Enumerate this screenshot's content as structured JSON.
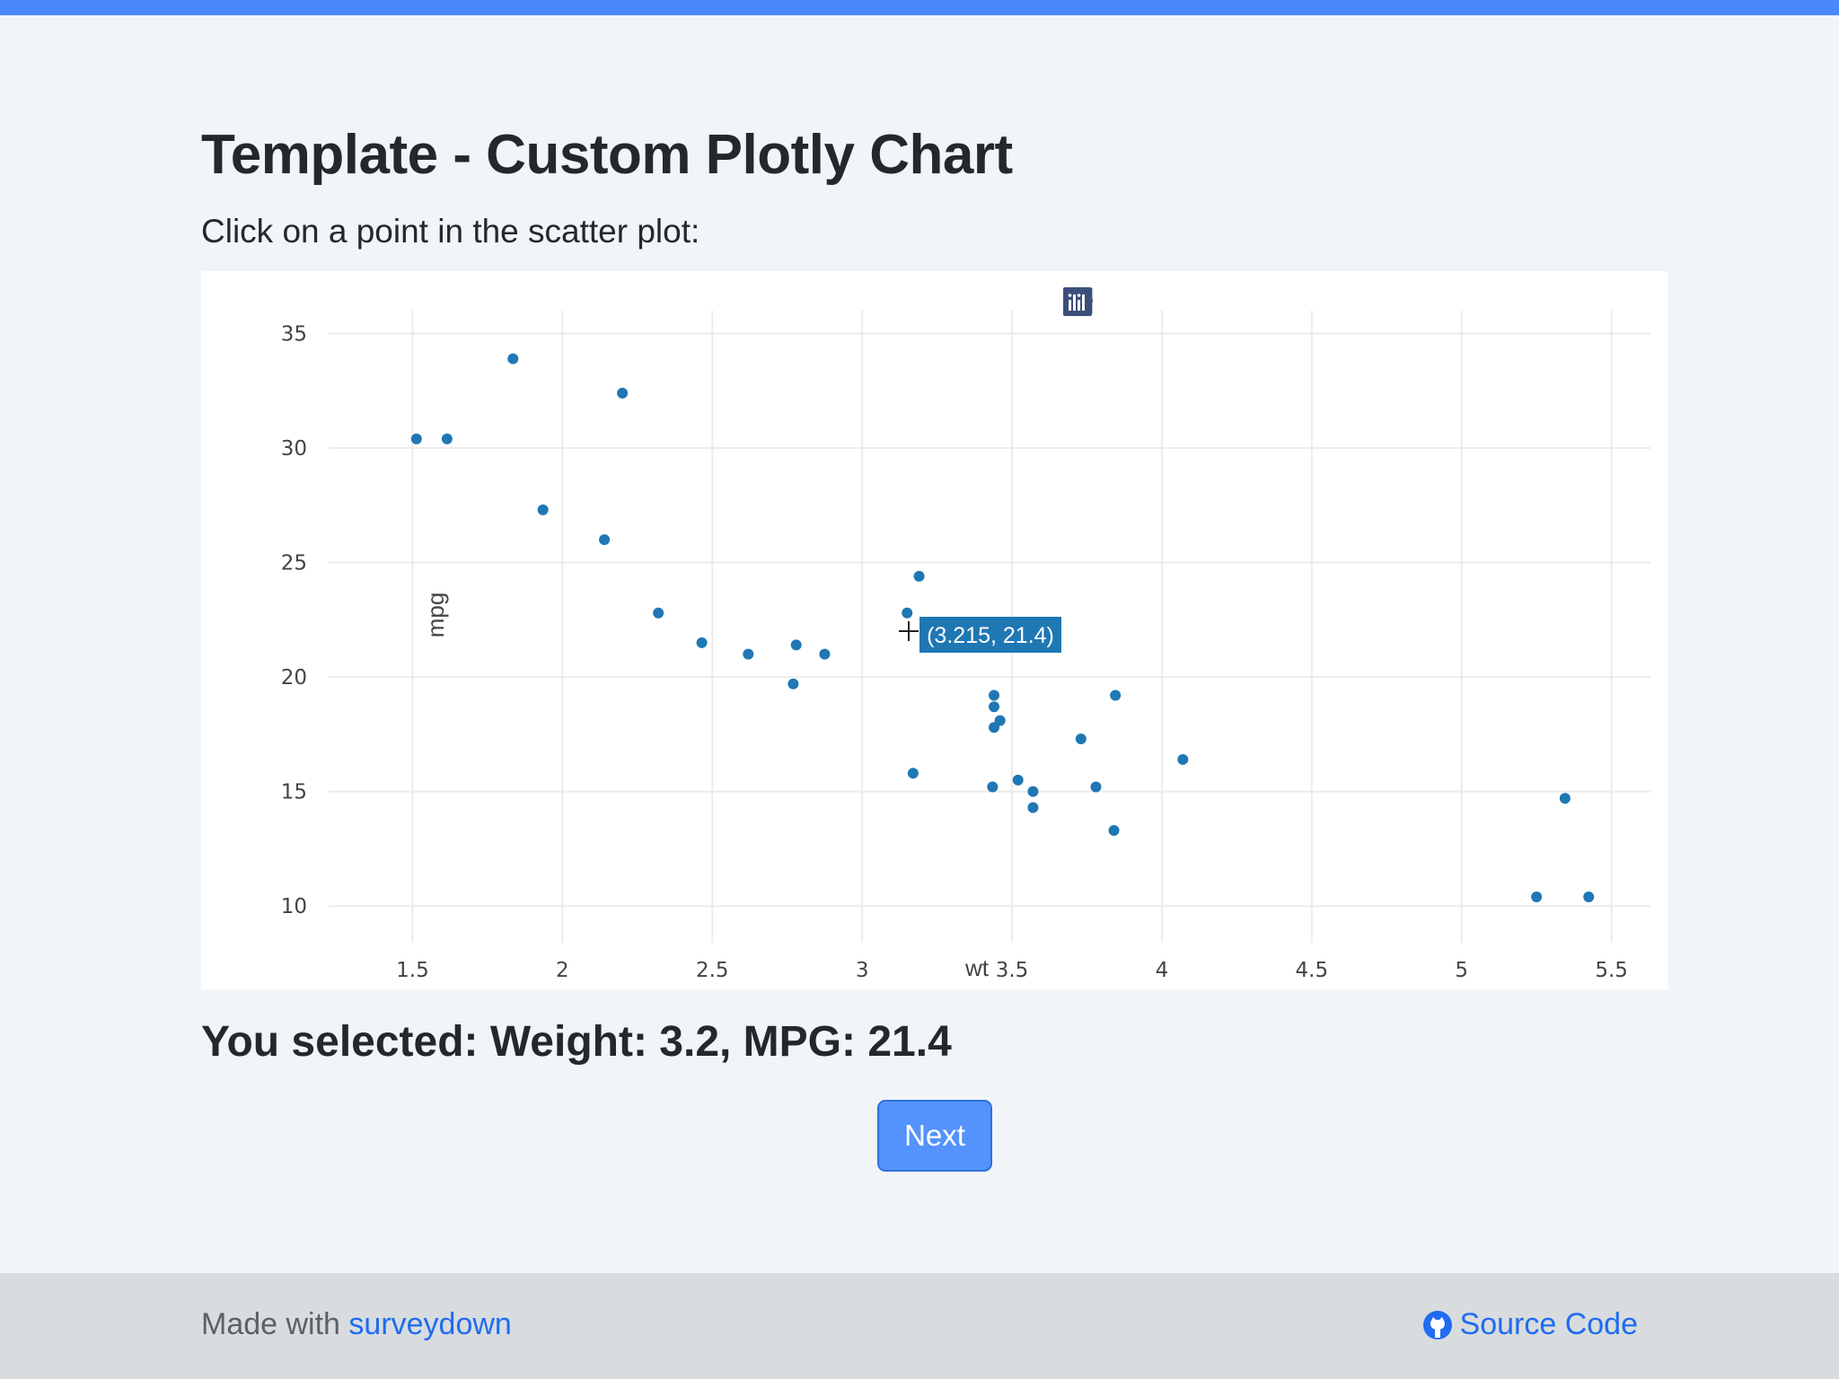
{
  "page": {
    "title": "Template - Custom Plotly Chart",
    "prompt": "Click on a point in the scatter plot:",
    "selected_text": "You selected: Weight: 3.2, MPG: 21.4",
    "next_label": "Next"
  },
  "footer": {
    "made_with": "Made with ",
    "made_with_link": "surveydown",
    "source_code": "Source Code",
    "source_icon": "github-icon"
  },
  "modebar": {
    "buttons": [
      "camera-icon",
      "zoom-icon",
      "pan-icon",
      "box-select-icon",
      "lasso-select-icon",
      "zoom-in-icon",
      "zoom-out-icon",
      "autoscale-icon",
      "reset-axes-icon",
      "hover-closest-icon",
      "hover-compare-icon",
      "plotly-logo-icon"
    ]
  },
  "colors": {
    "accent": "#4b88fb",
    "marker": "#1f77b4",
    "button": "#5493fb",
    "link": "#1f6cf0"
  },
  "chart_data": {
    "type": "scatter",
    "xlabel": "wt",
    "ylabel": "mpg",
    "xlim": [
      1.22,
      5.63
    ],
    "ylim": [
      8.4,
      36.0
    ],
    "xticks": [
      1.5,
      2,
      2.5,
      3,
      3.5,
      4,
      4.5,
      5,
      5.5
    ],
    "xtick_labels": [
      "1.5",
      "2",
      "2.5",
      "3",
      "3.5",
      "4",
      "4.5",
      "5",
      "5.5"
    ],
    "yticks": [
      10,
      15,
      20,
      25,
      30,
      35
    ],
    "ytick_labels": [
      "10",
      "15",
      "20",
      "25",
      "30",
      "35"
    ],
    "grid": true,
    "hover_label": "(3.215, 21.4)",
    "hover_point": {
      "x": 3.215,
      "y": 21.4
    },
    "series": [
      {
        "x": [
          2.62,
          2.875,
          2.32,
          3.215,
          3.44,
          3.46,
          3.57,
          3.19,
          3.15,
          3.44,
          3.44,
          4.07,
          3.73,
          3.78,
          5.25,
          5.424,
          5.345,
          2.2,
          1.615,
          1.835,
          2.465,
          3.52,
          3.435,
          3.84,
          3.845,
          1.935,
          2.14,
          1.513,
          3.17,
          2.77,
          3.57,
          2.78
        ],
        "y": [
          21.0,
          21.0,
          22.8,
          21.4,
          18.7,
          18.1,
          14.3,
          24.4,
          22.8,
          19.2,
          17.8,
          16.4,
          17.3,
          15.2,
          10.4,
          10.4,
          14.7,
          32.4,
          30.4,
          33.9,
          21.5,
          15.5,
          15.2,
          13.3,
          19.2,
          27.3,
          26.0,
          30.4,
          15.8,
          19.7,
          15.0,
          21.4
        ]
      }
    ]
  }
}
